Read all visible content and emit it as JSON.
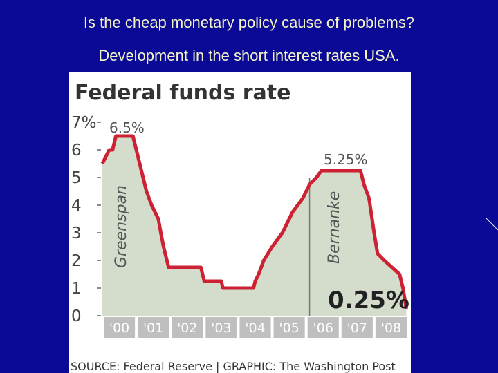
{
  "slide": {
    "title_line1": "Is the cheap monetary policy cause of problems?",
    "title_line2": "Development in the short interest rates USA."
  },
  "colors": {
    "background": "#0a0a96",
    "title_text": "#f4f4c8",
    "line": "#cc2233",
    "area": "#d4dccc",
    "tick_bar": "#bfbfbf"
  },
  "chart_data": {
    "type": "area",
    "title": "Federal funds rate",
    "ylabel": "",
    "xlabel": "",
    "y_ticks": [
      "7%",
      "6",
      "5",
      "4",
      "3",
      "2",
      "1",
      "0"
    ],
    "x_ticks": [
      "'00",
      "'01",
      "'02",
      "'03",
      "'04",
      "'05",
      "'06",
      "'07",
      "'08"
    ],
    "ylim": [
      0,
      7
    ],
    "xlim": [
      2000.0,
      2009.0
    ],
    "series": [
      {
        "values": [
          [
            2000.0,
            5.5
          ],
          [
            2000.1,
            5.75
          ],
          [
            2000.2,
            6.0
          ],
          [
            2000.3,
            6.0
          ],
          [
            2000.4,
            6.5
          ],
          [
            2000.9,
            6.5
          ],
          [
            2001.0,
            6.0
          ],
          [
            2001.1,
            5.5
          ],
          [
            2001.2,
            5.0
          ],
          [
            2001.3,
            4.5
          ],
          [
            2001.45,
            4.0
          ],
          [
            2001.55,
            3.75
          ],
          [
            2001.65,
            3.5
          ],
          [
            2001.72,
            3.0
          ],
          [
            2001.8,
            2.5
          ],
          [
            2001.9,
            2.0
          ],
          [
            2001.95,
            1.75
          ],
          [
            2002.9,
            1.75
          ],
          [
            2003.0,
            1.25
          ],
          [
            2003.5,
            1.25
          ],
          [
            2003.55,
            1.0
          ],
          [
            2004.45,
            1.0
          ],
          [
            2004.5,
            1.25
          ],
          [
            2004.6,
            1.5
          ],
          [
            2004.75,
            2.0
          ],
          [
            2005.0,
            2.5
          ],
          [
            2005.3,
            3.0
          ],
          [
            2005.6,
            3.75
          ],
          [
            2005.9,
            4.25
          ],
          [
            2006.1,
            4.75
          ],
          [
            2006.3,
            5.0
          ],
          [
            2006.45,
            5.25
          ],
          [
            2007.6,
            5.25
          ],
          [
            2007.7,
            4.75
          ],
          [
            2007.85,
            4.25
          ],
          [
            2008.0,
            3.0
          ],
          [
            2008.1,
            2.25
          ],
          [
            2008.3,
            2.0
          ],
          [
            2008.75,
            1.5
          ],
          [
            2008.85,
            1.0
          ],
          [
            2008.95,
            0.25
          ]
        ]
      }
    ],
    "annotations": {
      "peak_2000": "6.5%",
      "peak_2006": "5.25%",
      "final_value": "0.25%",
      "era_greenspan": "Greenspan",
      "era_bernanke": "Bernanke",
      "bernanke_start_year": 2006.1
    },
    "source": "SOURCE: Federal Reserve | GRAPHIC: The Washington Post",
    "grid": false
  }
}
